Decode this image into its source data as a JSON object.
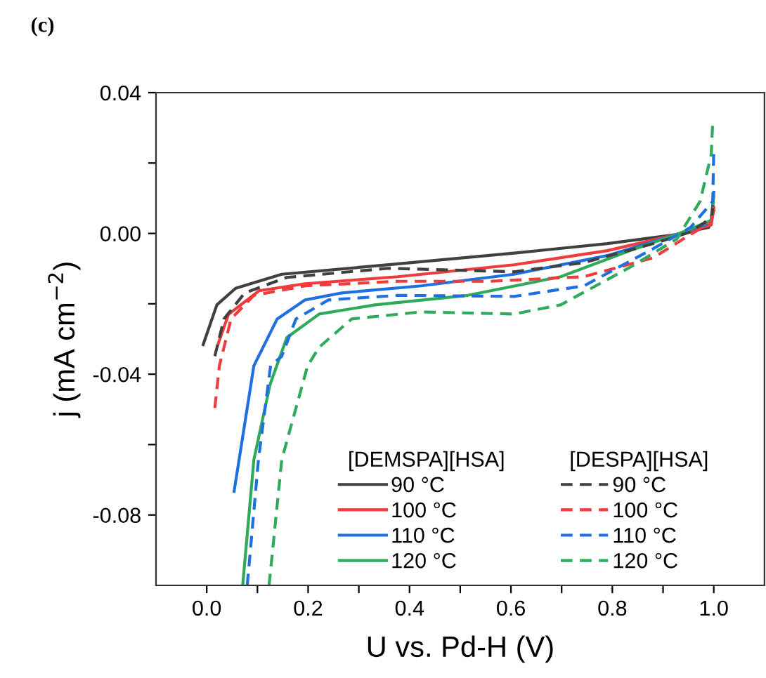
{
  "chart_data": {
    "type": "line",
    "xlabel": "U vs. Pd-H (V)",
    "ylabel": "j (mA cm$^{−2}$)",
    "annotations": [
      "(c)",
      "[DEMSPA][HSA]",
      "[DESPA][HSA]"
    ],
    "xlim": [
      -0.1,
      1.1
    ],
    "ylim": [
      -0.1,
      0.04
    ],
    "xticks": [
      {
        "value": 0.0,
        "label": "0.0"
      },
      {
        "value": 0.1,
        "label": null
      },
      {
        "value": 0.2,
        "label": "0.2"
      },
      {
        "value": 0.3,
        "label": null
      },
      {
        "value": 0.4,
        "label": "0.4"
      },
      {
        "value": 0.5,
        "label": null
      },
      {
        "value": 0.6,
        "label": "0.6"
      },
      {
        "value": 0.7,
        "label": null
      },
      {
        "value": 0.8,
        "label": "0.8"
      },
      {
        "value": 0.9,
        "label": null
      },
      {
        "value": 1.0,
        "label": "1.0"
      }
    ],
    "yticks": [
      {
        "value": 0.04,
        "label": "0.04"
      },
      {
        "value": 0.02,
        "label": null
      },
      {
        "value": 0.0,
        "label": "0.00"
      },
      {
        "value": -0.02,
        "label": null
      },
      {
        "value": -0.04,
        "label": "-0.04"
      },
      {
        "value": -0.06,
        "label": null
      },
      {
        "value": -0.08,
        "label": "-0.08"
      }
    ],
    "legend": "bottom right",
    "grid": false,
    "marker": "none",
    "series": [
      {
        "name": "90 °C",
        "color": "#404040",
        "line_style": "solid",
        "x": [
          -0.007,
          0.02,
          0.057,
          0.148,
          0.359,
          0.606,
          0.79,
          0.927,
          0.99,
          1.0
        ],
        "values": [
          -0.0316,
          -0.0203,
          -0.0156,
          -0.0116,
          -0.0089,
          -0.0056,
          -0.0029,
          -0.0003,
          0.0017,
          0.0064
        ]
      },
      {
        "name": "100 °C",
        "color": "#ef3b3b",
        "line_style": "solid",
        "x": [
          0.022,
          0.043,
          0.103,
          0.194,
          0.377,
          0.606,
          0.79,
          0.927,
          0.995,
          1.0
        ],
        "values": [
          -0.0316,
          -0.023,
          -0.0163,
          -0.0143,
          -0.0123,
          -0.0089,
          -0.0049,
          -0.0003,
          0.0024,
          0.0071
        ]
      },
      {
        "name": "110 °C",
        "color": "#1f6fe0",
        "line_style": "solid",
        "x": [
          0.054,
          0.093,
          0.139,
          0.194,
          0.267,
          0.423,
          0.606,
          0.79,
          0.927,
          0.995,
          1.0
        ],
        "values": [
          -0.0733,
          -0.0376,
          -0.0243,
          -0.0189,
          -0.0169,
          -0.0149,
          -0.0116,
          -0.0063,
          -0.0003,
          0.0031,
          0.0117
        ]
      },
      {
        "name": "120 °C",
        "color": "#2eaa5a",
        "line_style": "solid",
        "x": [
          0.071,
          0.093,
          0.125,
          0.158,
          0.222,
          0.332,
          0.515,
          0.698,
          0.835,
          0.927,
          0.995,
          1.0
        ],
        "values": [
          -0.1,
          -0.0643,
          -0.0429,
          -0.0296,
          -0.0229,
          -0.0203,
          -0.0176,
          -0.0123,
          -0.0049,
          -0.0003,
          0.0037,
          0.0104
        ]
      },
      {
        "name": "90 °C",
        "color": "#404040",
        "line_style": "dashed",
        "x": [
          0.016,
          0.034,
          0.075,
          0.158,
          0.359,
          0.606,
          0.744,
          0.881,
          0.954,
          0.995,
          1.0
        ],
        "values": [
          -0.0349,
          -0.0243,
          -0.0169,
          -0.0125,
          -0.0099,
          -0.0109,
          -0.0083,
          -0.0029,
          0.0004,
          0.0044,
          0.0091
        ]
      },
      {
        "name": "100 °C",
        "color": "#ef3b3b",
        "line_style": "dashed",
        "x": [
          0.016,
          0.025,
          0.048,
          0.093,
          0.194,
          0.377,
          0.56,
          0.744,
          0.881,
          0.954,
          0.995,
          1.0
        ],
        "values": [
          -0.0496,
          -0.0376,
          -0.0243,
          -0.0176,
          -0.0149,
          -0.0136,
          -0.0136,
          -0.0123,
          -0.0069,
          -0.0003,
          0.0031,
          0.0077
        ]
      },
      {
        "name": "110 °C",
        "color": "#1f6fe0",
        "line_style": "dashed",
        "x": [
          0.08,
          0.102,
          0.126,
          0.148,
          0.176,
          0.24,
          0.377,
          0.606,
          0.744,
          0.881,
          0.954,
          0.998,
          1.0
        ],
        "values": [
          -0.1,
          -0.0643,
          -0.0376,
          -0.0349,
          -0.0243,
          -0.0189,
          -0.0176,
          -0.0179,
          -0.0149,
          -0.0043,
          0.0017,
          0.0091,
          0.0237
        ]
      },
      {
        "name": "120 °C",
        "color": "#2eaa5a",
        "line_style": "dashed",
        "x": [
          0.123,
          0.148,
          0.199,
          0.222,
          0.286,
          0.423,
          0.606,
          0.698,
          0.835,
          0.927,
          0.973,
          0.995,
          0.998
        ],
        "values": [
          -0.1,
          -0.0643,
          -0.0376,
          -0.0323,
          -0.0243,
          -0.0223,
          -0.0229,
          -0.0203,
          -0.0096,
          -0.0016,
          0.0091,
          0.0224,
          0.0317
        ]
      }
    ]
  }
}
